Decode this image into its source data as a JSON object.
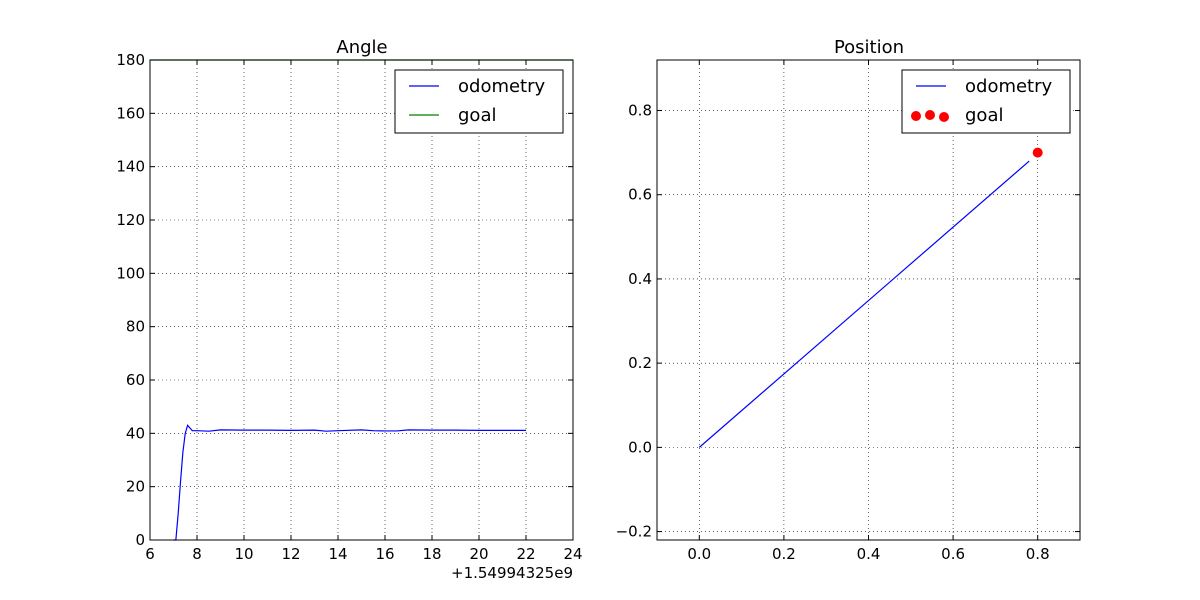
{
  "chart_data": [
    {
      "type": "line",
      "title": "Angle",
      "xlabel": "",
      "ylabel": "",
      "x_offset_text": "+1.54994325e9",
      "xlim": [
        6,
        24
      ],
      "ylim": [
        0,
        180
      ],
      "xticks": [
        6,
        8,
        10,
        12,
        14,
        16,
        18,
        20,
        22,
        24
      ],
      "yticks": [
        0,
        20,
        40,
        60,
        80,
        100,
        120,
        140,
        160,
        180
      ],
      "grid": true,
      "legend_position": "top-right",
      "series": [
        {
          "name": "odometry",
          "color": "#0000ff",
          "x": [
            7.0,
            7.1,
            7.2,
            7.3,
            7.4,
            7.5,
            7.6,
            7.7,
            7.8,
            8.0,
            8.5,
            9.0,
            10.0,
            11.0,
            12.0,
            13.0,
            13.5,
            14.0,
            15.0,
            15.5,
            16.0,
            16.5,
            17.0,
            18.0,
            19.0,
            20.0,
            21.0,
            22.0
          ],
          "values": [
            0,
            0,
            10,
            22,
            33,
            40,
            43,
            42,
            41,
            41,
            40.8,
            41.3,
            41.2,
            41.2,
            41.1,
            41.2,
            40.8,
            41.0,
            41.3,
            41.0,
            40.9,
            40.9,
            41.3,
            41.2,
            41.2,
            41.1,
            41.1,
            41.1
          ]
        },
        {
          "name": "goal",
          "color": "#008000",
          "x": [
            6,
            24
          ],
          "values": [
            180,
            180
          ]
        }
      ]
    },
    {
      "type": "line",
      "title": "Position",
      "xlabel": "",
      "ylabel": "",
      "xlim": [
        -0.1,
        0.9
      ],
      "ylim": [
        -0.22,
        0.92
      ],
      "xticks": [
        0.0,
        0.2,
        0.4,
        0.6,
        0.8
      ],
      "yticks": [
        -0.2,
        0.0,
        0.2,
        0.4,
        0.6,
        0.8
      ],
      "xtick_labels": [
        "0.0",
        "0.2",
        "0.4",
        "0.6",
        "0.8"
      ],
      "ytick_labels": [
        "−0.2",
        "0.0",
        "0.2",
        "0.4",
        "0.6",
        "0.8"
      ],
      "grid": true,
      "legend_position": "top-right",
      "series": [
        {
          "name": "odometry",
          "color": "#0000ff",
          "x": [
            0.0,
            0.78
          ],
          "values": [
            0.0,
            0.68
          ]
        },
        {
          "name": "goal",
          "color": "#ff0000",
          "marker": "circle",
          "x": [
            0.8
          ],
          "values": [
            0.7
          ]
        }
      ]
    }
  ]
}
